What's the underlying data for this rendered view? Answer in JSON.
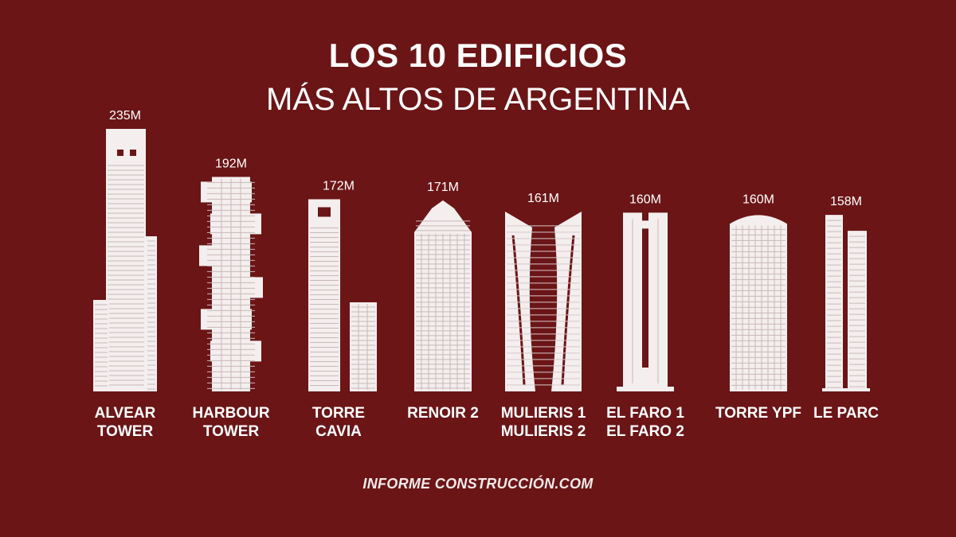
{
  "header": {
    "title": "LOS 10 EDIFICIOS",
    "subtitle": "MÁS ALTOS DE ARGENTINA"
  },
  "footer": {
    "brand": "INFORME CONSTRUCCIÓN.COM"
  },
  "colors": {
    "background": "#6b1517",
    "building": "#f4eeee",
    "text": "#ffffff"
  },
  "chart_data": {
    "type": "bar",
    "unit": "M",
    "ylim": [
      0,
      235
    ],
    "categories": [
      [
        "ALVEAR",
        "TOWER"
      ],
      [
        "HARBOUR",
        "TOWER"
      ],
      [
        "TORRE",
        "CAVIA"
      ],
      [
        "RENOIR 2"
      ],
      [
        "MULIERIS 1",
        "MULIERIS 2"
      ],
      [
        "EL FARO 1",
        "EL FARO 2"
      ],
      [
        "TORRE YPF"
      ],
      [
        "LE PARC"
      ]
    ],
    "values": [
      235,
      192,
      172,
      171,
      161,
      160,
      160,
      158
    ],
    "value_labels": [
      "235M",
      "192M",
      "172M",
      "171M",
      "161M",
      "160M",
      "160M",
      "158M"
    ],
    "building_styles": [
      "alvear",
      "harbour",
      "cavia",
      "renoir",
      "twin-curved",
      "twin-block",
      "ypf",
      "twin-slim"
    ]
  }
}
